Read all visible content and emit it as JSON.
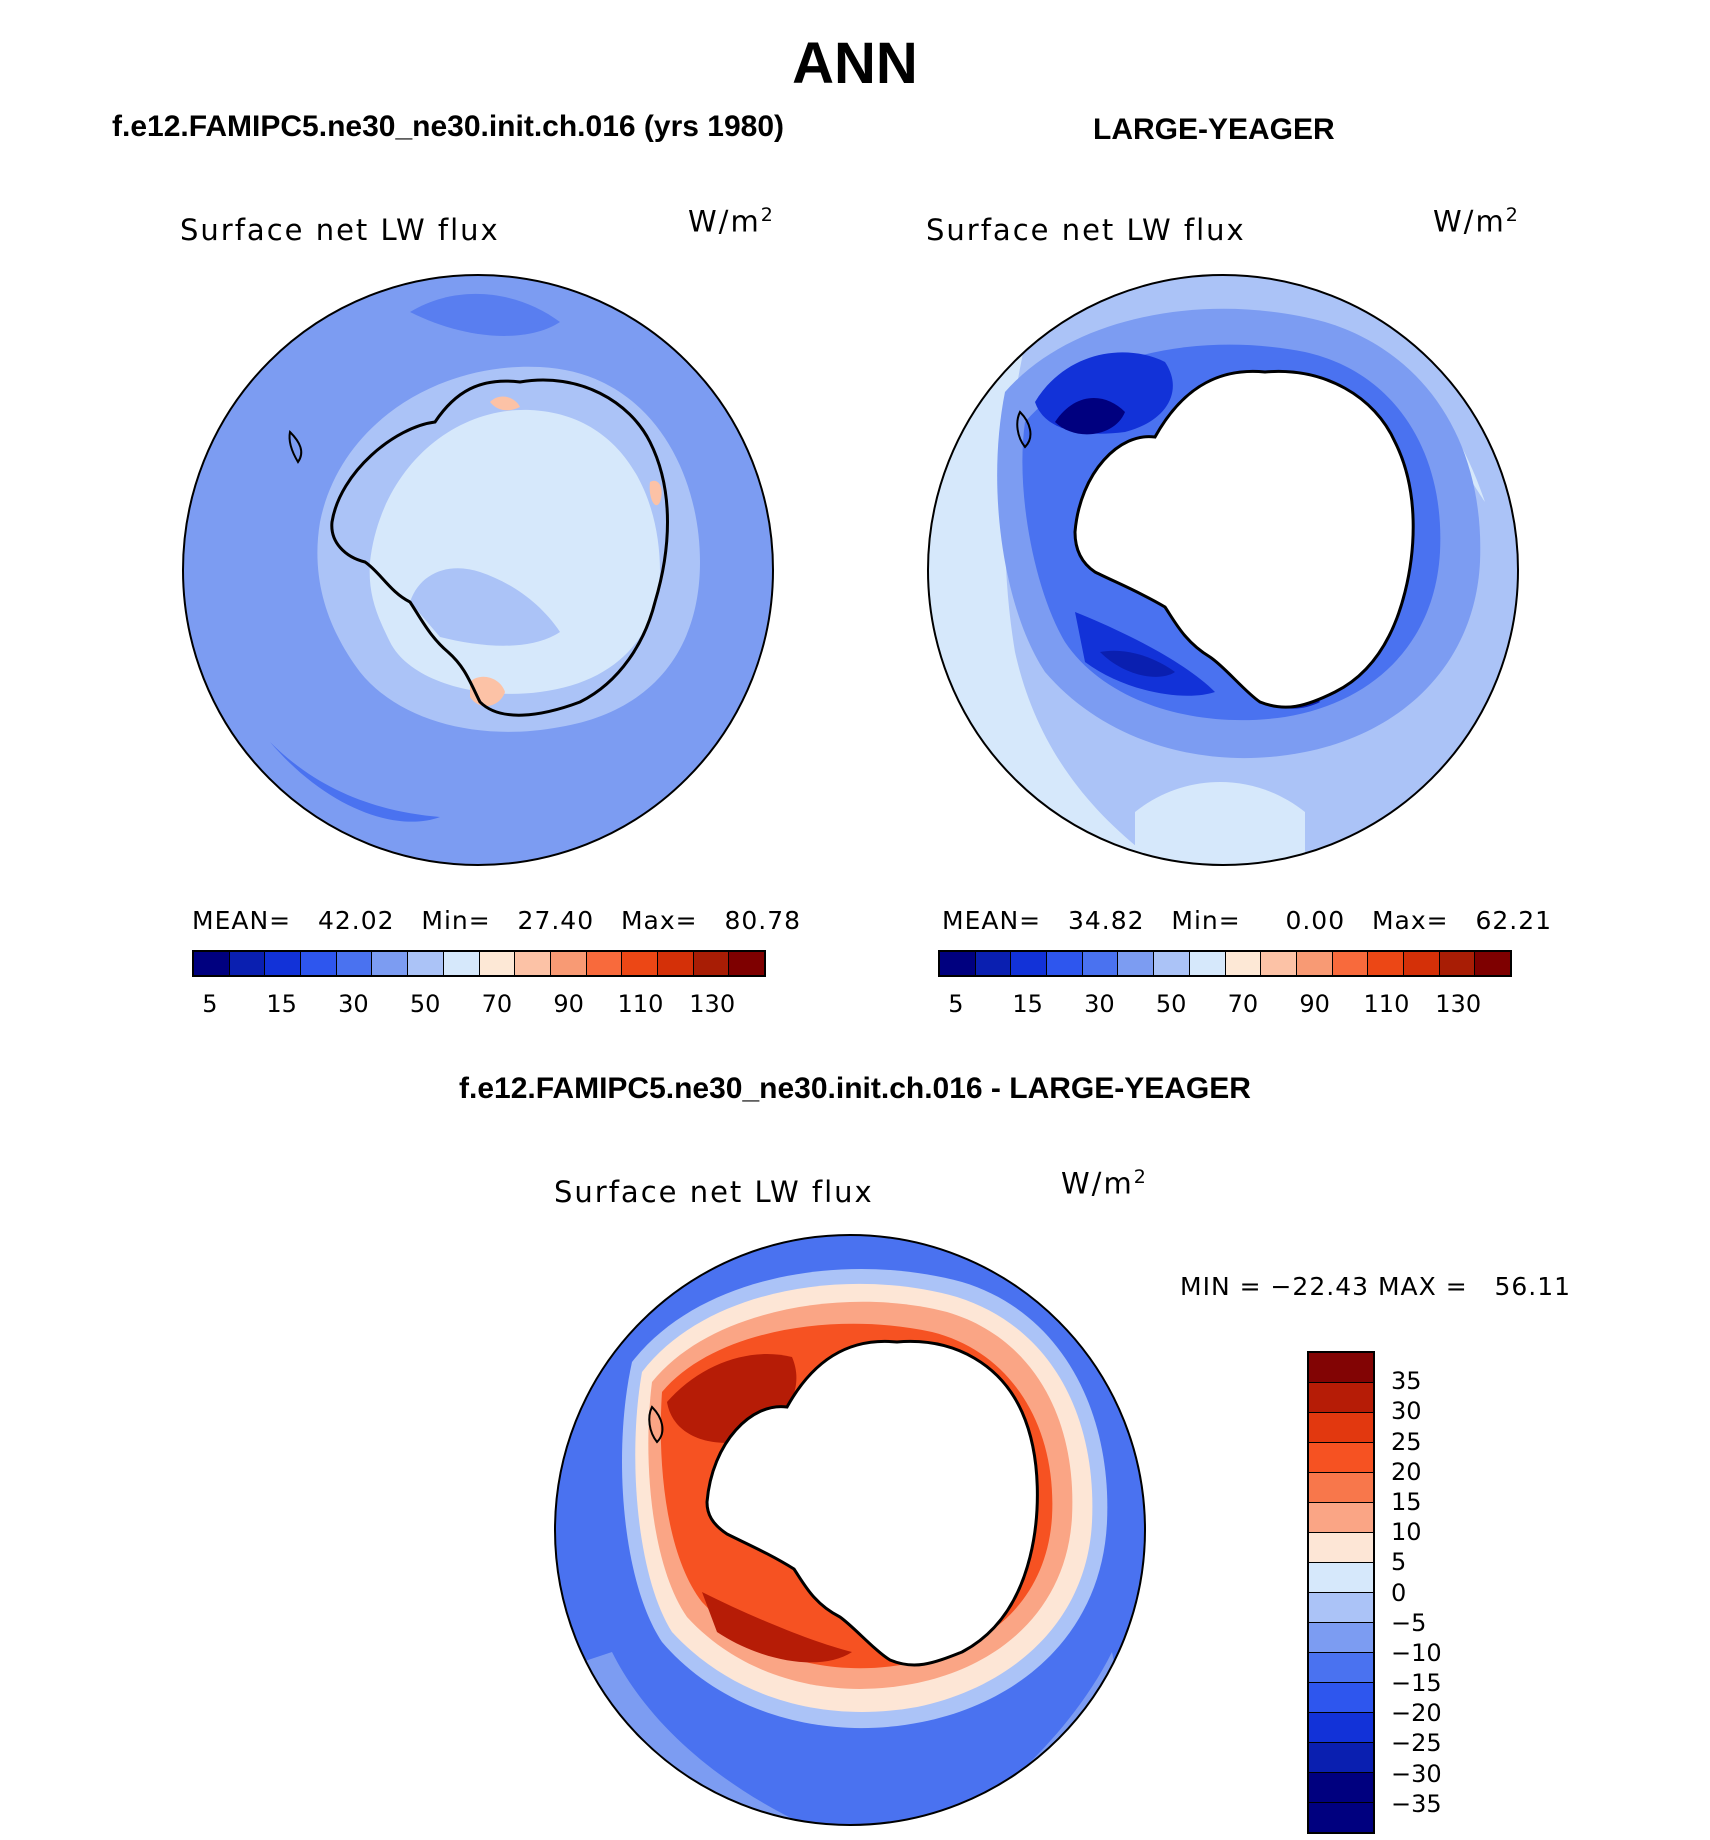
{
  "page": {
    "title": "ANN"
  },
  "panels": [
    {
      "case_title": "f.e12.FAMIPC5.ne30_ne30.init.ch.016 (yrs 1980)",
      "variable": "Surface net LW flux",
      "units_base": "W/m",
      "units_exp": "2",
      "stats": {
        "mean_label": "MEAN=",
        "mean": "42.02",
        "min_label": "Min=",
        "min": "27.40",
        "max_label": "Max=",
        "max": "80.78"
      }
    },
    {
      "case_title": "LARGE-YEAGER",
      "variable": "Surface net LW flux",
      "units_base": "W/m",
      "units_exp": "2",
      "stats": {
        "mean_label": "MEAN=",
        "mean": "34.82",
        "min_label": "Min=",
        "min": "0.00",
        "max_label": "Max=",
        "max": "62.21"
      }
    },
    {
      "case_title": "f.e12.FAMIPC5.ne30_ne30.init.ch.016 - LARGE-YEAGER",
      "variable": "Surface net LW flux",
      "units_base": "W/m",
      "units_exp": "2",
      "stats_text": "MIN = −22.43 MAX =   56.11"
    }
  ],
  "colorbar_top": {
    "labels": [
      "5",
      "15",
      "30",
      "50",
      "70",
      "90",
      "110",
      "130"
    ],
    "colors": [
      "#00007f",
      "#0a1fb0",
      "#1232d8",
      "#2e56ee",
      "#4a72f0",
      "#7c9cf2",
      "#abc3f7",
      "#d6e8fb",
      "#fde8d6",
      "#fcc2a6",
      "#f89a74",
      "#f86a3c",
      "#ec4715",
      "#d43008",
      "#a81d05",
      "#7e0000"
    ]
  },
  "colorbar_diff": {
    "labels": [
      "35",
      "30",
      "25",
      "20",
      "15",
      "10",
      "5",
      "0",
      "−5",
      "−10",
      "−15",
      "−20",
      "−25",
      "−30",
      "−35"
    ],
    "colors": [
      "#820404",
      "#b61c06",
      "#e2380f",
      "#f65222",
      "#f8774b",
      "#faa585",
      "#fde6d6",
      "#d6e8fb",
      "#abc3f7",
      "#7c9cf2",
      "#4a72f0",
      "#2e56ee",
      "#1232d8",
      "#0a1fb0",
      "#00007f",
      "#00007f"
    ]
  },
  "maps": {
    "projection": "south polar stereographic",
    "region": "Antarctica / Southern Ocean",
    "panel_1_palette": [
      "#7c9cf2",
      "#abc3f7",
      "#d6e8fb",
      "#4a72f0",
      "#fcc2a6"
    ],
    "panel_2_palette": [
      "#abc3f7",
      "#7c9cf2",
      "#4a72f0",
      "#1232d8",
      "#00007f"
    ],
    "panel_3_palette": [
      "#4a72f0",
      "#7c9cf2",
      "#fde6d6",
      "#faa585",
      "#f65222",
      "#b61c06"
    ]
  }
}
